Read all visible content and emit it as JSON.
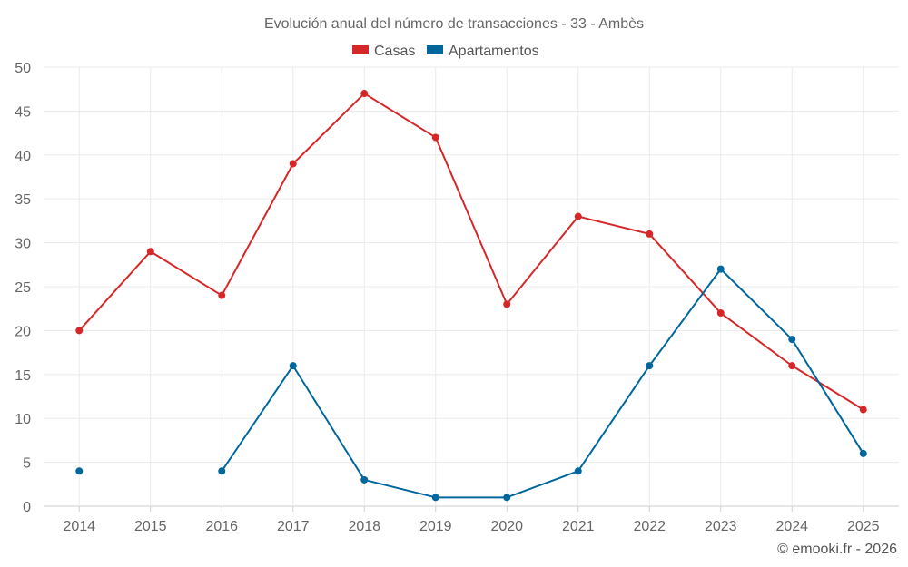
{
  "chart_data": {
    "type": "line",
    "title": "Evolución anual del número de transacciones - 33 - Ambès",
    "categories": [
      "2014",
      "2015",
      "2016",
      "2017",
      "2018",
      "2019",
      "2020",
      "2021",
      "2022",
      "2023",
      "2024",
      "2025"
    ],
    "ylim": [
      0,
      50
    ],
    "yticks": [
      0,
      5,
      10,
      15,
      20,
      25,
      30,
      35,
      40,
      45,
      50
    ],
    "grid": true,
    "legend_position": "top-center",
    "series": [
      {
        "name": "Casas",
        "color": "#d62728",
        "values": [
          20,
          29,
          24,
          39,
          47,
          42,
          23,
          33,
          31,
          22,
          16,
          11
        ]
      },
      {
        "name": "Apartamentos",
        "color": "#00679e",
        "values": [
          4,
          null,
          4,
          16,
          3,
          1,
          1,
          4,
          16,
          27,
          19,
          6
        ]
      }
    ]
  },
  "credit": "© emooki.fr - 2026"
}
